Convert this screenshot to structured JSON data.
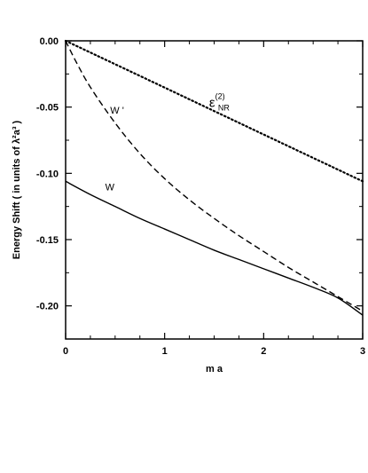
{
  "chart_data": {
    "type": "line",
    "title": "",
    "xlabel": "m a",
    "ylabel": "Energy Shift ( in units of λ²a³ )",
    "xlim": [
      0,
      3
    ],
    "ylim": [
      -0.225,
      0.0
    ],
    "xticks": [
      0,
      1,
      2,
      3
    ],
    "xtick_labels": [
      "0",
      "1",
      "2",
      "3"
    ],
    "yticks": [
      0.0,
      -0.05,
      -0.1,
      -0.15,
      -0.2
    ],
    "ytick_labels": [
      "0.00",
      "-0.05",
      "-0.10",
      "-0.15",
      "-0.20"
    ],
    "grid": false,
    "legend": "none",
    "series": [
      {
        "name": "W",
        "style": "solid",
        "color": "#000000",
        "x": [
          0,
          0.25,
          0.5,
          0.75,
          1.0,
          1.25,
          1.5,
          1.75,
          2.0,
          2.25,
          2.5,
          2.75,
          3.0
        ],
        "y": [
          -0.106,
          -0.116,
          -0.125,
          -0.134,
          -0.142,
          -0.15,
          -0.158,
          -0.165,
          -0.172,
          -0.179,
          -0.186,
          -0.194,
          -0.207
        ]
      },
      {
        "name": "W '",
        "style": "dashed",
        "color": "#000000",
        "x": [
          0,
          0.1,
          0.25,
          0.5,
          0.75,
          1.0,
          1.25,
          1.5,
          1.75,
          2.0,
          2.25,
          2.5,
          2.75,
          3.0
        ],
        "y": [
          0.0,
          -0.015,
          -0.035,
          -0.062,
          -0.085,
          -0.104,
          -0.12,
          -0.134,
          -0.147,
          -0.159,
          -0.171,
          -0.182,
          -0.193,
          -0.204
        ]
      },
      {
        "name": "εNR(2)",
        "style": "dotted",
        "color": "#000000",
        "x": [
          0,
          1,
          2,
          3
        ],
        "y": [
          0.0,
          -0.0353,
          -0.0707,
          -0.106
        ]
      }
    ],
    "annotations": [
      {
        "series": "W",
        "text_main": "W",
        "text_sup": "",
        "text_sub": "",
        "x": 0.4,
        "y": -0.113
      },
      {
        "series": "W '",
        "text_main": "W '",
        "text_sup": "",
        "text_sub": "",
        "x": 0.45,
        "y": -0.055
      },
      {
        "series": "εNR(2)",
        "text_main": "ε",
        "text_sup": "(2)",
        "text_sub": "NR",
        "x": 1.45,
        "y": -0.05
      }
    ]
  }
}
